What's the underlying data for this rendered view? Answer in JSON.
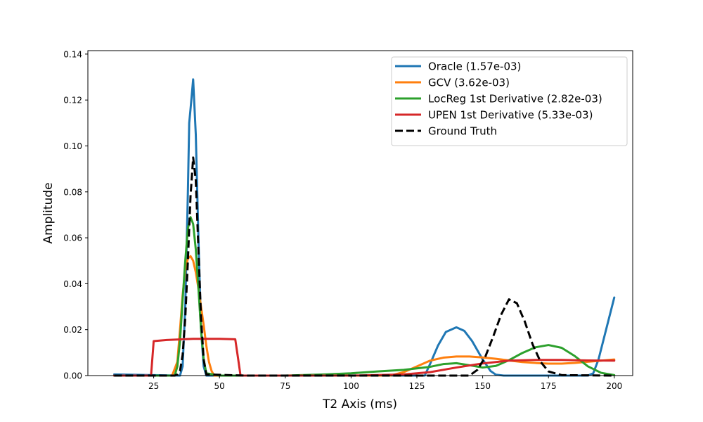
{
  "chart_data": {
    "type": "line",
    "xlabel": "T2 Axis (ms)",
    "ylabel": "Amplitude",
    "xlim": [
      0,
      207
    ],
    "ylim": [
      0,
      0.1415
    ],
    "xticks": [
      25,
      50,
      75,
      100,
      125,
      150,
      175,
      200
    ],
    "yticks": [
      0.0,
      0.02,
      0.04,
      0.06,
      0.08,
      0.1,
      0.12,
      0.14
    ],
    "ytick_labels": [
      "0.00",
      "0.02",
      "0.04",
      "0.06",
      "0.08",
      "0.10",
      "0.12",
      "0.14"
    ],
    "grid": false,
    "legend_position": "top-right",
    "series": [
      {
        "name": "Oracle (1.57e-03)",
        "color": "#1f77b4",
        "style": "solid",
        "x": [
          10,
          35,
          36,
          37,
          38,
          38.5,
          39,
          40,
          41,
          42,
          43,
          44,
          45,
          60,
          100,
          128,
          130,
          133,
          136,
          140,
          143,
          146,
          150,
          153,
          155,
          158,
          160,
          190,
          192,
          194,
          196,
          198,
          200
        ],
        "y": [
          0.0005,
          0.0,
          0.004,
          0.03,
          0.08,
          0.11,
          0.116,
          0.129,
          0.105,
          0.06,
          0.02,
          0.004,
          0.0,
          0.0,
          0.0,
          0.0,
          0.005,
          0.013,
          0.019,
          0.021,
          0.0195,
          0.015,
          0.007,
          0.002,
          0.0004,
          0.0,
          0.0,
          0.0,
          0.001,
          0.007,
          0.016,
          0.025,
          0.034
        ]
      },
      {
        "name": "GCV (3.62e-03)",
        "color": "#ff7f0e",
        "style": "solid",
        "x": [
          10,
          32,
          34,
          35,
          36,
          37,
          38,
          39,
          40,
          41,
          42,
          43,
          44,
          45,
          46,
          47,
          48,
          60,
          100,
          115,
          120,
          125,
          130,
          135,
          140,
          145,
          150,
          155,
          160,
          165,
          170,
          175,
          180,
          185,
          190,
          195,
          200
        ],
        "y": [
          0.0,
          0.0,
          0.006,
          0.02,
          0.035,
          0.046,
          0.051,
          0.052,
          0.05,
          0.045,
          0.038,
          0.03,
          0.022,
          0.013,
          0.006,
          0.002,
          0.0,
          0.0,
          0.0,
          0.0,
          0.0015,
          0.004,
          0.0065,
          0.0078,
          0.0083,
          0.0083,
          0.0079,
          0.0073,
          0.0066,
          0.0059,
          0.0055,
          0.0052,
          0.0052,
          0.0055,
          0.006,
          0.0065,
          0.007
        ]
      },
      {
        "name": "LocReg 1st Derivative (2.82e-03)",
        "color": "#2ca02c",
        "style": "solid",
        "x": [
          10,
          33,
          34,
          35,
          36,
          37,
          38,
          39,
          40,
          41,
          42,
          43,
          44,
          45,
          50,
          75,
          90,
          100,
          110,
          120,
          130,
          135,
          140,
          145,
          150,
          155,
          160,
          165,
          170,
          175,
          180,
          185,
          190,
          195,
          200
        ],
        "y": [
          0.0,
          0.0,
          0.004,
          0.015,
          0.033,
          0.05,
          0.064,
          0.069,
          0.066,
          0.055,
          0.038,
          0.02,
          0.007,
          0.001,
          0.0,
          0.0,
          0.0005,
          0.001,
          0.0018,
          0.0025,
          0.0038,
          0.005,
          0.0054,
          0.0045,
          0.0035,
          0.0042,
          0.0067,
          0.0098,
          0.0123,
          0.0133,
          0.0121,
          0.0085,
          0.004,
          0.0012,
          0.0002
        ]
      },
      {
        "name": "UPEN 1st Derivative (5.33e-03)",
        "color": "#d62728",
        "style": "solid",
        "x": [
          10,
          24,
          25,
          30,
          40,
          50,
          56,
          57,
          58,
          60,
          100,
          120,
          130,
          140,
          150,
          160,
          170,
          180,
          190,
          200
        ],
        "y": [
          0.0,
          0.0,
          0.015,
          0.0155,
          0.016,
          0.016,
          0.0158,
          0.008,
          0.0,
          0.0,
          0.0,
          0.0005,
          0.0015,
          0.0035,
          0.0053,
          0.0065,
          0.0068,
          0.0068,
          0.0066,
          0.0065
        ]
      },
      {
        "name": "Ground Truth",
        "color": "#000000",
        "style": "dashed",
        "x": [
          10,
          33,
          34,
          35,
          36,
          37,
          38,
          39,
          40,
          41,
          42,
          43,
          44,
          45,
          60,
          100,
          145,
          148,
          151,
          154,
          157,
          160,
          163,
          166,
          169,
          172,
          175,
          180,
          200
        ],
        "y": [
          0.0,
          0.0,
          0.0005,
          0.002,
          0.009,
          0.025,
          0.05,
          0.078,
          0.095,
          0.085,
          0.055,
          0.025,
          0.007,
          0.0005,
          0.0,
          0.0,
          0.0,
          0.0025,
          0.0082,
          0.017,
          0.0265,
          0.0332,
          0.0315,
          0.0235,
          0.0135,
          0.006,
          0.0018,
          0.0002,
          0.0
        ]
      }
    ]
  }
}
